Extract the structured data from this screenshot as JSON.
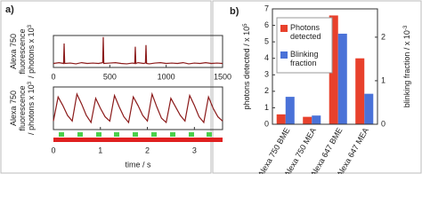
{
  "chart_data": [
    {
      "type": "line",
      "panel": "a)",
      "color": "#8b1a1a",
      "ylabel_lines": [
        "Alexa 750",
        "fluorescence",
        "/ photons x 10"
      ],
      "ylabel_exp": "3",
      "x": [
        0,
        50,
        90,
        95,
        100,
        150,
        200,
        250,
        300,
        350,
        400,
        437,
        442,
        447,
        500,
        550,
        600,
        650,
        700,
        721,
        726,
        731,
        750,
        800,
        816,
        821,
        826,
        850,
        900,
        950,
        1000,
        1050,
        1100,
        1150,
        1200,
        1250,
        1300,
        1350,
        1400,
        1450,
        1500
      ],
      "values": [
        0.5,
        0.6,
        0.5,
        3.0,
        0.5,
        0.55,
        0.45,
        0.6,
        0.5,
        0.55,
        0.5,
        0.6,
        3.8,
        0.5,
        0.55,
        0.6,
        0.5,
        0.45,
        0.55,
        0.5,
        2.6,
        0.5,
        0.6,
        0.5,
        0.55,
        2.8,
        0.5,
        0.45,
        0.55,
        0.6,
        0.5,
        0.55,
        0.5,
        0.6,
        0.45,
        0.55,
        0.5,
        0.6,
        0.5,
        0.55,
        0.5
      ],
      "xlim": [
        0,
        1500
      ],
      "xticks": [
        0,
        500,
        1000,
        1500
      ],
      "ylim": [
        0,
        4
      ]
    },
    {
      "type": "line",
      "color": "#8b1a1a",
      "xlabel": "time / s",
      "ylabel_lines": [
        "Alexa 750",
        "fluorescence",
        "/ photons x 10"
      ],
      "ylabel_exp": "3",
      "x": [
        0,
        0.1,
        0.2,
        0.3,
        0.4,
        0.5,
        0.6,
        0.7,
        0.8,
        0.9,
        1.0,
        1.1,
        1.2,
        1.3,
        1.4,
        1.5,
        1.6,
        1.7,
        1.8,
        1.9,
        2.0,
        2.1,
        2.2,
        2.3,
        2.4,
        2.5,
        2.6,
        2.7,
        2.8,
        2.9,
        3.0,
        3.1,
        3.2,
        3.3,
        3.4,
        3.5,
        3.6
      ],
      "values": [
        0.6,
        2.3,
        1.7,
        1.0,
        0.6,
        2.5,
        1.8,
        1.0,
        0.5,
        2.2,
        1.5,
        0.9,
        0.6,
        2.4,
        1.6,
        0.9,
        0.5,
        2.3,
        1.7,
        1.0,
        0.6,
        2.5,
        1.6,
        0.8,
        0.5,
        2.2,
        1.6,
        1.0,
        0.6,
        2.4,
        1.7,
        0.9,
        0.5,
        2.3,
        1.5,
        0.9,
        0.6
      ],
      "xlim": [
        0,
        3.6
      ],
      "xticks": [
        0,
        1,
        2,
        3
      ],
      "ylim": [
        0,
        3
      ]
    },
    {
      "type": "bar",
      "panel": "b)",
      "categories": [
        "Alexa 750 BME",
        "Alexa 750 MEA",
        "Alexa 647 BME",
        "Alexa 647 MEA"
      ],
      "series": [
        {
          "name": "Photons detected",
          "color": "#e8412c",
          "values": [
            0.6,
            0.45,
            6.6,
            4.0
          ]
        },
        {
          "name": "Blinking fraction",
          "color": "#4a72d8",
          "axis": "y2",
          "values": [
            0.63,
            0.2,
            2.08,
            0.7
          ]
        }
      ],
      "ylim": [
        0,
        7
      ],
      "yticks": [
        0,
        1,
        2,
        3,
        4,
        5,
        6,
        7
      ],
      "y2lim": [
        0,
        2.65
      ],
      "y2ticks": [
        0,
        1,
        2
      ],
      "ylabel": "photons detected / x 10",
      "ylabel_exp": "5",
      "y2label": "blinking fraction / x 10",
      "y2label_exp": "-3"
    }
  ]
}
